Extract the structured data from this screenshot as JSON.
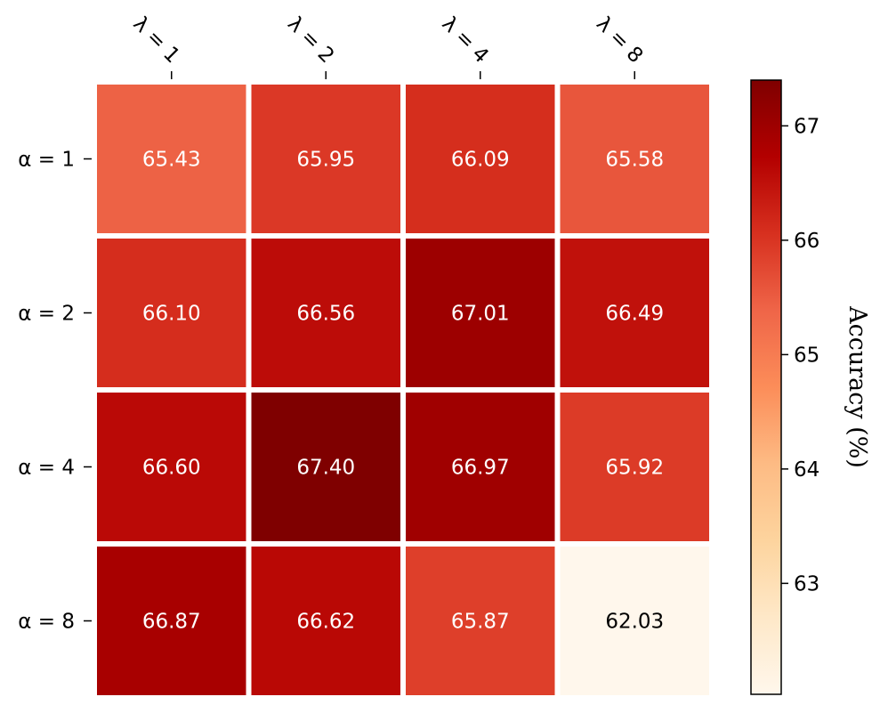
{
  "chart_data": {
    "type": "heatmap",
    "title": "",
    "x_tick_labels": [
      "λ = 1",
      "λ = 2",
      "λ = 4",
      "λ = 8"
    ],
    "y_tick_labels": [
      "α = 1",
      "α = 2",
      "α = 4",
      "α = 8"
    ],
    "values": [
      [
        65.43,
        65.95,
        66.09,
        65.58
      ],
      [
        66.1,
        66.56,
        67.01,
        66.49
      ],
      [
        66.6,
        67.4,
        66.97,
        65.92
      ],
      [
        66.87,
        66.62,
        65.87,
        62.03
      ]
    ],
    "value_labels": [
      [
        "65.43",
        "65.95",
        "66.09",
        "65.58"
      ],
      [
        "66.10",
        "66.56",
        "67.01",
        "66.49"
      ],
      [
        "66.60",
        "67.40",
        "66.97",
        "65.92"
      ],
      [
        "66.87",
        "66.62",
        "65.87",
        "62.03"
      ]
    ],
    "colorbar": {
      "label": "Accuracy (%)",
      "range": [
        62.03,
        67.4
      ],
      "ticks": [
        63,
        64,
        65,
        66,
        67
      ],
      "tick_labels": [
        "63",
        "64",
        "65",
        "66",
        "67"
      ],
      "colormap": "OrRd"
    },
    "colors": {
      "colormap_stops": [
        "#fff7ec",
        "#fee8c8",
        "#fdd49e",
        "#fdbb84",
        "#fc8d59",
        "#ef6548",
        "#d7301f",
        "#b30000",
        "#7f0000"
      ],
      "text_light": "#ffffff",
      "text_dark": "#000000"
    }
  }
}
